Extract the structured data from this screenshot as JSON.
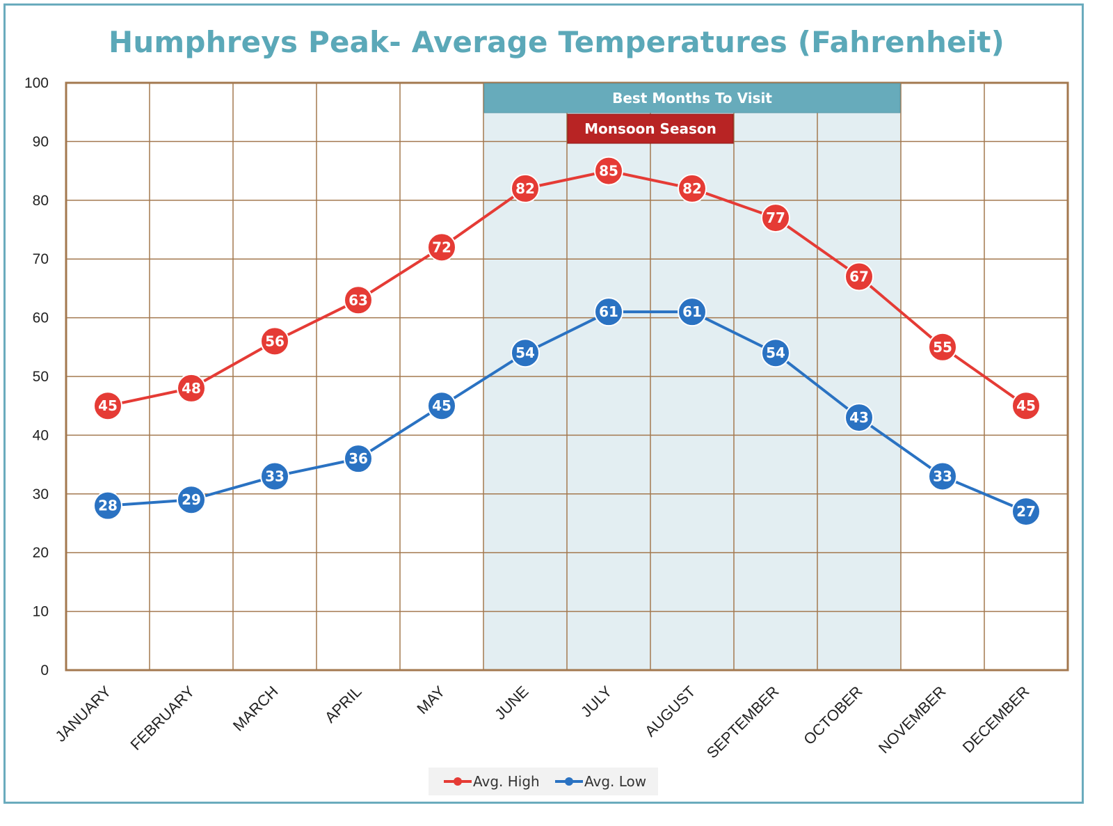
{
  "chart_data": {
    "type": "line",
    "title": "Humphreys Peak- Average Temperatures (Fahrenheit)",
    "categories": [
      "JANUARY",
      "FEBRUARY",
      "MARCH",
      "APRIL",
      "MAY",
      "JUNE",
      "JULY",
      "AUGUST",
      "SEPTEMBER",
      "OCTOBER",
      "NOVEMBER",
      "DECEMBER"
    ],
    "ylim": [
      0,
      100
    ],
    "yticks": [
      0,
      10,
      20,
      30,
      40,
      50,
      60,
      70,
      80,
      90,
      100
    ],
    "grid": true,
    "legend_position": "bottom",
    "series": [
      {
        "name": "Avg. High",
        "color": "#e53b35",
        "values": [
          45,
          48,
          56,
          63,
          72,
          82,
          85,
          82,
          77,
          67,
          55,
          45
        ]
      },
      {
        "name": "Avg. Low",
        "color": "#2a72c2",
        "values": [
          28,
          29,
          33,
          36,
          45,
          54,
          61,
          61,
          54,
          43,
          33,
          27
        ]
      }
    ],
    "annotations": [
      {
        "label": "Best Months To Visit",
        "from": "JUNE",
        "to": "OCTOBER",
        "color": "#67abbb"
      },
      {
        "label": "Monsoon Season",
        "from": "JULY",
        "to": "AUGUST",
        "color": "#b82424"
      }
    ],
    "highlight_band": {
      "from": "JUNE",
      "to": "OCTOBER",
      "color": "#e3eef2"
    }
  },
  "colors": {
    "frame": "#6aabbd",
    "title": "#5ba8b8",
    "grid": "#a3784f",
    "axis": "#a3784f"
  }
}
